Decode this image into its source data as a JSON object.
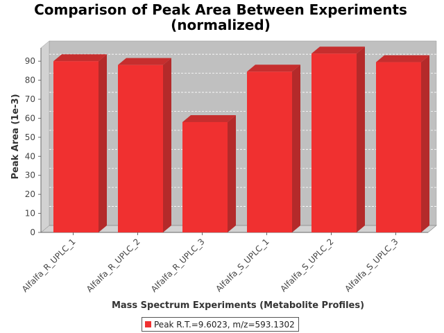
{
  "colors": {
    "bar_front": "#f03030",
    "bar_side": "#b42a2a",
    "bar_top": "#c62e2e",
    "plot_back": "#c0c0c0",
    "plot_floor": "#d2d2d2"
  },
  "chart_data": {
    "type": "bar",
    "title": "Comparison of Peak Area Between Experiments",
    "subtitle": "(normalized)",
    "xlabel": "Mass Spectrum Experiments (Metabolite Profiles)",
    "ylabel": "Peak Area (1e-3)",
    "ylim": [
      0,
      97
    ],
    "yticks": [
      0,
      10,
      20,
      30,
      40,
      50,
      60,
      70,
      80,
      90
    ],
    "grid": true,
    "legend_position": "bottom",
    "categories": [
      "Alfalfa_R_UPLC_1",
      "Alfalfa_R_UPLC_2",
      "Alfalfa_R_UPLC_3",
      "Alfalfa_S_UPLC_1",
      "Alfalfa_S_UPLC_2",
      "Alfalfa_S_UPLC_3"
    ],
    "series": [
      {
        "name": "Peak R.T.=9.6023, m/z=593.1302",
        "values": [
          90,
          88,
          58,
          84.5,
          94,
          89.5
        ]
      }
    ]
  }
}
